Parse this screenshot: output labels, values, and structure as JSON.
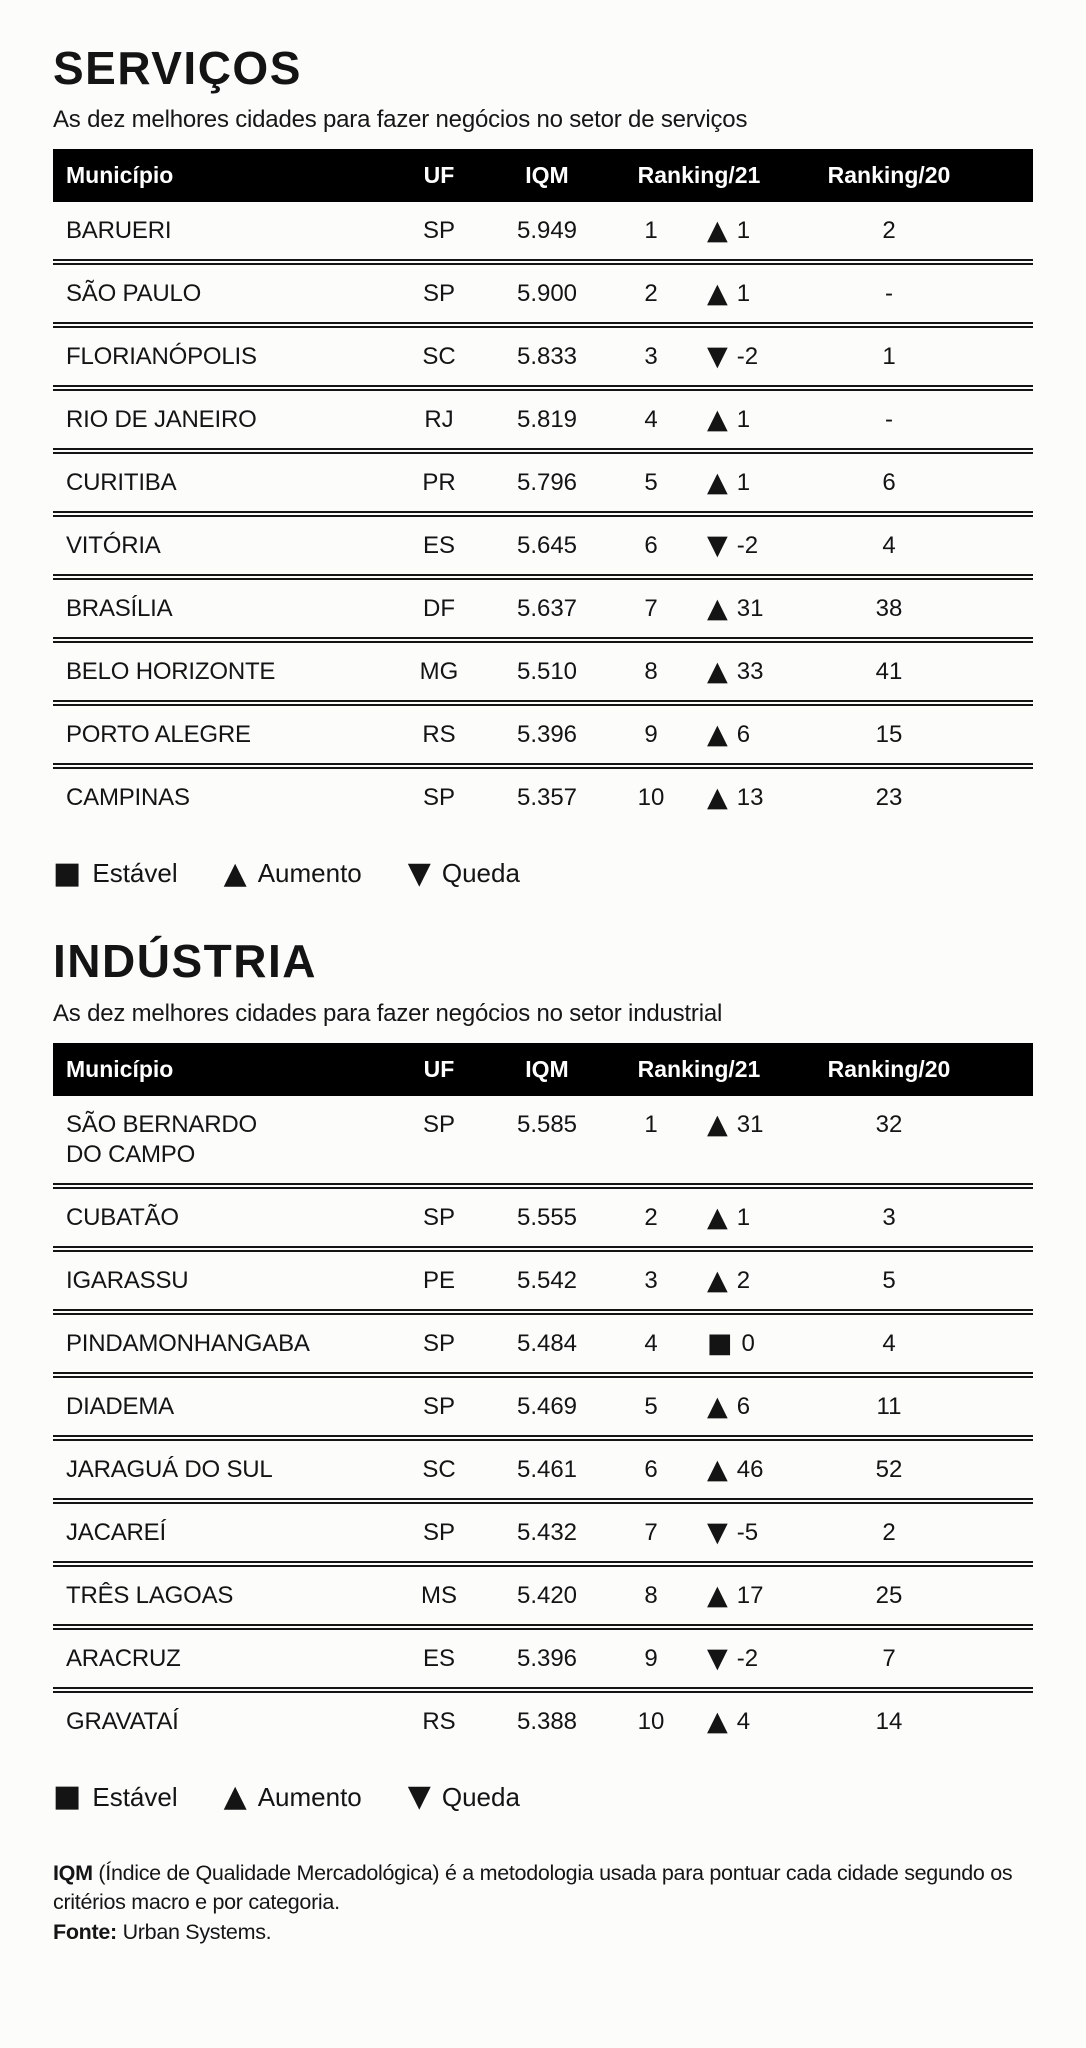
{
  "colors": {
    "header_bg": "#000000",
    "header_text": "#ffffff",
    "body_text": "#141414",
    "background": "#fcfcfb"
  },
  "icons": {
    "up": "▲",
    "down": "▼",
    "stable": "■"
  },
  "legend": {
    "stable": "Estável",
    "up": "Aumento",
    "down": "Queda"
  },
  "sections": [
    {
      "title": "SERVIÇOS",
      "subtitle": "As dez melhores cidades para fazer negócios no setor de serviços",
      "columns": [
        "Município",
        "UF",
        "IQM",
        "Ranking/21",
        "Ranking/20"
      ],
      "rows": [
        {
          "municipio": "BARUERI",
          "uf": "SP",
          "iqm": "5.949",
          "rank21": "1",
          "change_dir": "up",
          "change": "1",
          "rank20": "2"
        },
        {
          "municipio": "SÃO PAULO",
          "uf": "SP",
          "iqm": "5.900",
          "rank21": "2",
          "change_dir": "up",
          "change": "1",
          "rank20": "-"
        },
        {
          "municipio": "FLORIANÓPOLIS",
          "uf": "SC",
          "iqm": "5.833",
          "rank21": "3",
          "change_dir": "down",
          "change": "-2",
          "rank20": "1"
        },
        {
          "municipio": "RIO DE JANEIRO",
          "uf": "RJ",
          "iqm": "5.819",
          "rank21": "4",
          "change_dir": "up",
          "change": "1",
          "rank20": "-"
        },
        {
          "municipio": "CURITIBA",
          "uf": "PR",
          "iqm": "5.796",
          "rank21": "5",
          "change_dir": "up",
          "change": "1",
          "rank20": "6"
        },
        {
          "municipio": "VITÓRIA",
          "uf": "ES",
          "iqm": "5.645",
          "rank21": "6",
          "change_dir": "down",
          "change": "-2",
          "rank20": "4"
        },
        {
          "municipio": "BRASÍLIA",
          "uf": "DF",
          "iqm": "5.637",
          "rank21": "7",
          "change_dir": "up",
          "change": "31",
          "rank20": "38"
        },
        {
          "municipio": "BELO HORIZONTE",
          "uf": "MG",
          "iqm": "5.510",
          "rank21": "8",
          "change_dir": "up",
          "change": "33",
          "rank20": "41"
        },
        {
          "municipio": "PORTO ALEGRE",
          "uf": "RS",
          "iqm": "5.396",
          "rank21": "9",
          "change_dir": "up",
          "change": "6",
          "rank20": "15"
        },
        {
          "municipio": "CAMPINAS",
          "uf": "SP",
          "iqm": "5.357",
          "rank21": "10",
          "change_dir": "up",
          "change": "13",
          "rank20": "23"
        }
      ]
    },
    {
      "title": "INDÚSTRIA",
      "subtitle": "As dez melhores cidades para fazer negócios no setor industrial",
      "columns": [
        "Município",
        "UF",
        "IQM",
        "Ranking/21",
        "Ranking/20"
      ],
      "rows": [
        {
          "municipio": "SÃO BERNARDO\nDO CAMPO",
          "uf": "SP",
          "iqm": "5.585",
          "rank21": "1",
          "change_dir": "up",
          "change": "31",
          "rank20": "32"
        },
        {
          "municipio": "CUBATÃO",
          "uf": "SP",
          "iqm": "5.555",
          "rank21": "2",
          "change_dir": "up",
          "change": "1",
          "rank20": "3"
        },
        {
          "municipio": "IGARASSU",
          "uf": "PE",
          "iqm": "5.542",
          "rank21": "3",
          "change_dir": "up",
          "change": "2",
          "rank20": "5"
        },
        {
          "municipio": "PINDAMONHANGABA",
          "uf": "SP",
          "iqm": "5.484",
          "rank21": "4",
          "change_dir": "stable",
          "change": "0",
          "rank20": "4"
        },
        {
          "municipio": "DIADEMA",
          "uf": "SP",
          "iqm": "5.469",
          "rank21": "5",
          "change_dir": "up",
          "change": "6",
          "rank20": "11"
        },
        {
          "municipio": "JARAGUÁ DO SUL",
          "uf": "SC",
          "iqm": "5.461",
          "rank21": "6",
          "change_dir": "up",
          "change": "46",
          "rank20": "52"
        },
        {
          "municipio": "JACAREÍ",
          "uf": "SP",
          "iqm": "5.432",
          "rank21": "7",
          "change_dir": "down",
          "change": "-5",
          "rank20": "2"
        },
        {
          "municipio": "TRÊS LAGOAS",
          "uf": "MS",
          "iqm": "5.420",
          "rank21": "8",
          "change_dir": "up",
          "change": "17",
          "rank20": "25"
        },
        {
          "municipio": "ARACRUZ",
          "uf": "ES",
          "iqm": "5.396",
          "rank21": "9",
          "change_dir": "down",
          "change": "-2",
          "rank20": "7"
        },
        {
          "municipio": "GRAVATAÍ",
          "uf": "RS",
          "iqm": "5.388",
          "rank21": "10",
          "change_dir": "up",
          "change": "4",
          "rank20": "14"
        }
      ]
    }
  ],
  "footer": {
    "iqm_label": "IQM",
    "iqm_text": "(Índice de Qualidade Mercadológica) é a metodologia usada para pontuar cada cidade segundo os critérios macro e por categoria.",
    "fonte_label": "Fonte:",
    "fonte_text": "Urban Systems."
  }
}
